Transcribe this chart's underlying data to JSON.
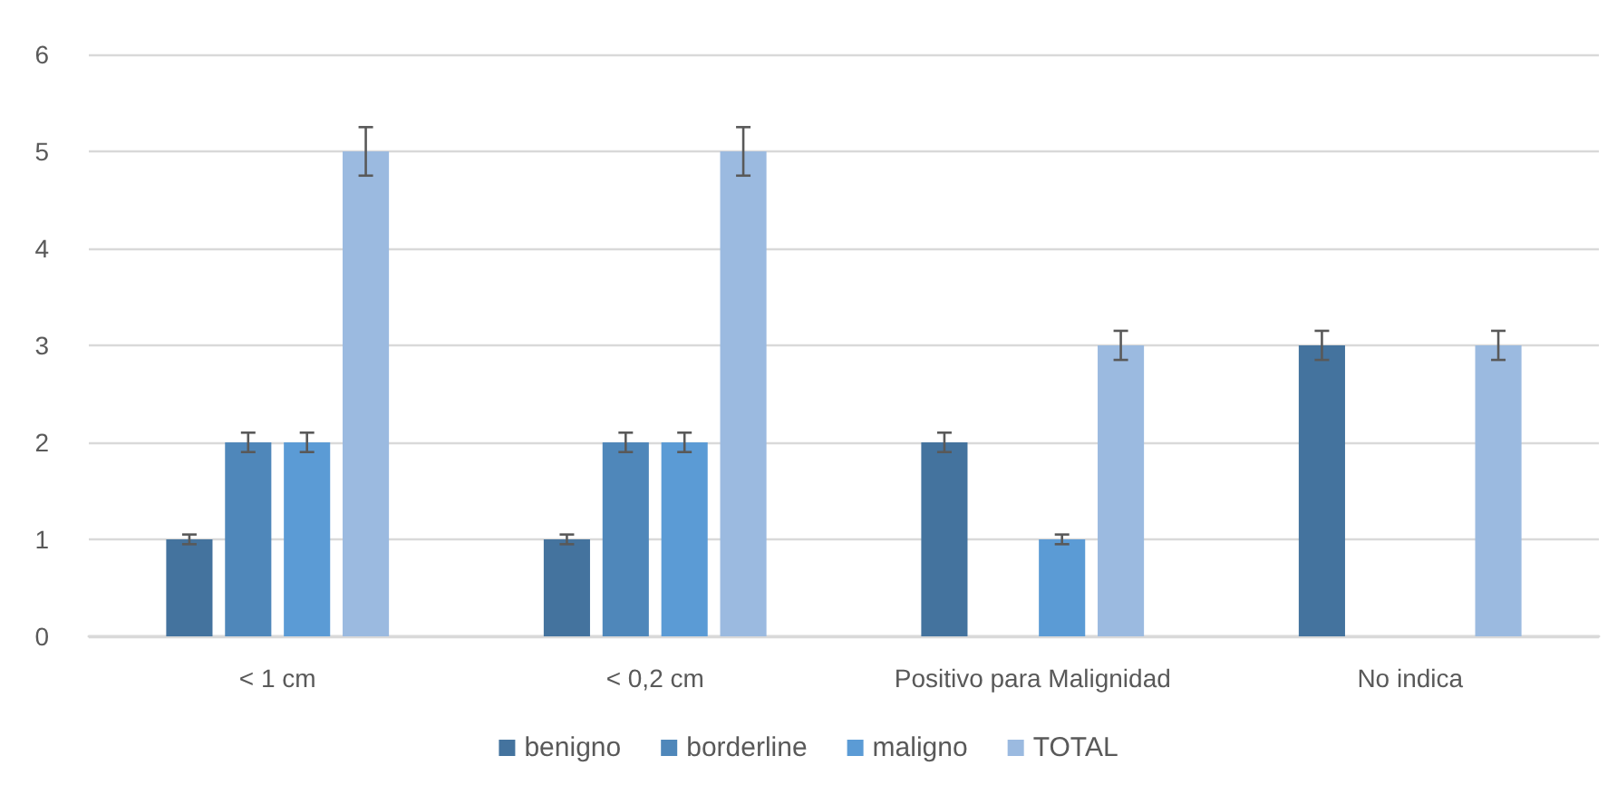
{
  "chart_data": {
    "type": "bar",
    "categories": [
      "< 1 cm",
      "< 0,2 cm",
      "Positivo para Malignidad",
      "No indica"
    ],
    "series": [
      {
        "name": "benigno",
        "color": "#44739e",
        "values": [
          1,
          1,
          2,
          3
        ],
        "errors": [
          0.05,
          0.05,
          0.1,
          0.15
        ]
      },
      {
        "name": "borderline",
        "color": "#4f87ba",
        "values": [
          2,
          2,
          null,
          null
        ],
        "errors": [
          0.1,
          0.1,
          null,
          null
        ]
      },
      {
        "name": "maligno",
        "color": "#5b9bd5",
        "values": [
          2,
          2,
          1,
          null
        ],
        "errors": [
          0.1,
          0.1,
          0.05,
          null
        ]
      },
      {
        "name": "TOTAL",
        "color": "#9bbae0",
        "values": [
          5,
          5,
          3,
          3
        ],
        "errors": [
          0.25,
          0.25,
          0.15,
          0.15
        ]
      }
    ],
    "ylim": [
      0,
      6
    ],
    "yticks": [
      0,
      1,
      2,
      3,
      4,
      5,
      6
    ],
    "grid": "y",
    "legend": "bottom"
  }
}
